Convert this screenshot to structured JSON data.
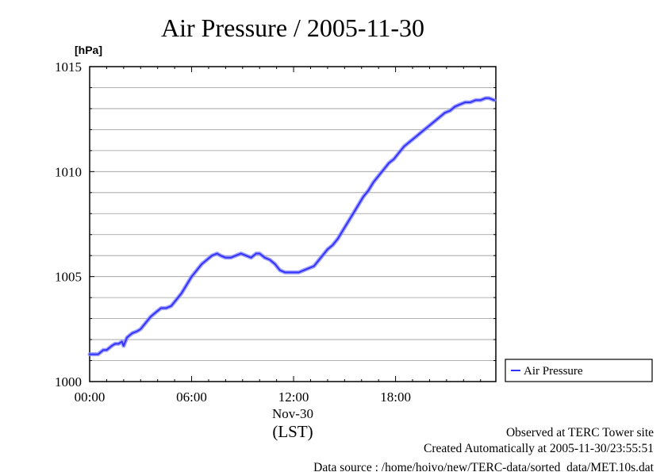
{
  "chart_data": {
    "type": "line",
    "title": "Air Pressure / 2005-11-30",
    "unit_label": "[hPa]",
    "ylim": [
      1000,
      1015
    ],
    "y_ticks": [
      "1000",
      "1005",
      "1010",
      "1015"
    ],
    "y_tick_values": [
      1000,
      1005,
      1010,
      1015
    ],
    "xlim": [
      0,
      23.9
    ],
    "x_ticks": [
      "00:00",
      "06:00",
      "12:00",
      "18:00"
    ],
    "x_tick_values": [
      0,
      6,
      12,
      18
    ],
    "x_sublabel": "Nov-30",
    "xlabel": "(LST)",
    "grid": true,
    "legend_position": "right",
    "series": [
      {
        "name": "Air Pressure",
        "color": "#3333ff",
        "x": [
          0.0,
          0.2,
          0.5,
          0.8,
          1.0,
          1.3,
          1.5,
          1.7,
          1.9,
          2.0,
          2.2,
          2.5,
          2.8,
          3.0,
          3.3,
          3.6,
          3.9,
          4.2,
          4.5,
          4.8,
          5.1,
          5.4,
          5.7,
          6.0,
          6.3,
          6.6,
          6.9,
          7.2,
          7.5,
          7.7,
          8.0,
          8.3,
          8.6,
          8.9,
          9.2,
          9.5,
          9.8,
          10.0,
          10.3,
          10.6,
          10.9,
          11.2,
          11.5,
          11.7,
          12.0,
          12.3,
          12.6,
          12.9,
          13.2,
          13.5,
          13.8,
          14.0,
          14.3,
          14.6,
          14.9,
          15.2,
          15.5,
          15.8,
          16.1,
          16.4,
          16.7,
          17.0,
          17.3,
          17.6,
          17.9,
          18.2,
          18.5,
          18.8,
          19.1,
          19.4,
          19.7,
          20.0,
          20.3,
          20.6,
          20.9,
          21.2,
          21.5,
          21.8,
          22.1,
          22.4,
          22.7,
          23.0,
          23.3,
          23.5,
          23.8
        ],
        "values": [
          1001.3,
          1001.3,
          1001.3,
          1001.5,
          1001.5,
          1001.7,
          1001.8,
          1001.8,
          1001.9,
          1001.7,
          1002.1,
          1002.3,
          1002.4,
          1002.5,
          1002.8,
          1003.1,
          1003.3,
          1003.5,
          1003.5,
          1003.6,
          1003.9,
          1004.2,
          1004.6,
          1005.0,
          1005.3,
          1005.6,
          1005.8,
          1006.0,
          1006.1,
          1006.0,
          1005.9,
          1005.9,
          1006.0,
          1006.1,
          1006.0,
          1005.9,
          1006.1,
          1006.1,
          1005.9,
          1005.8,
          1005.6,
          1005.3,
          1005.2,
          1005.2,
          1005.2,
          1005.2,
          1005.3,
          1005.4,
          1005.5,
          1005.8,
          1006.1,
          1006.3,
          1006.5,
          1006.8,
          1007.2,
          1007.6,
          1008.0,
          1008.4,
          1008.8,
          1009.1,
          1009.5,
          1009.8,
          1010.1,
          1010.4,
          1010.6,
          1010.9,
          1011.2,
          1011.4,
          1011.6,
          1011.8,
          1012.0,
          1012.2,
          1012.4,
          1012.6,
          1012.8,
          1012.9,
          1013.1,
          1013.2,
          1013.3,
          1013.3,
          1013.4,
          1013.4,
          1013.5,
          1013.5,
          1013.4
        ]
      }
    ]
  },
  "footer": {
    "site": "Observed at TERC Tower site",
    "created": "Created Automatically at 2005-11-30/23:55:51",
    "source": "Data source : /home/hoivo/new/TERC-data/sorted  data/MET.10s.dat"
  }
}
